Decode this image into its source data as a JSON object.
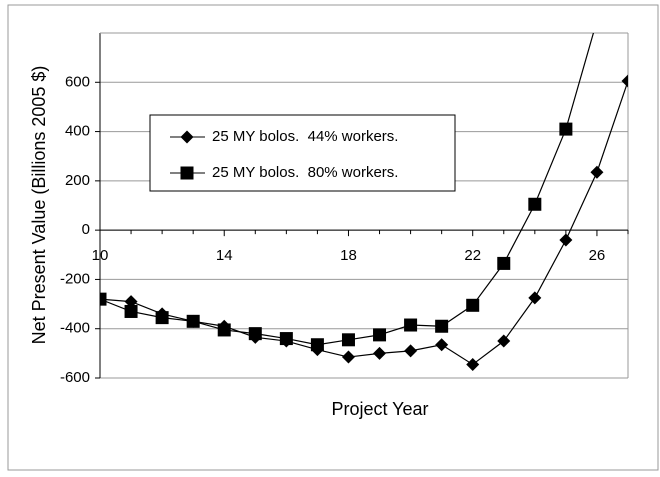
{
  "chart_data": {
    "type": "line",
    "x": [
      10,
      11,
      12,
      13,
      14,
      15,
      16,
      17,
      18,
      19,
      20,
      21,
      22,
      23,
      24,
      25,
      26,
      27
    ],
    "series": [
      {
        "name": "25 MY bolos.  44% workers.",
        "color": "#000000",
        "marker": "diamond",
        "values": [
          -280,
          -290,
          -340,
          -370,
          -390,
          -435,
          -450,
          -485,
          -515,
          -500,
          -490,
          -465,
          -545,
          -450,
          -275,
          -40,
          235,
          605
        ]
      },
      {
        "name": "25 MY bolos.  80% workers.",
        "color": "#000000",
        "marker": "square",
        "values": [
          -280,
          -330,
          -355,
          -370,
          -405,
          -420,
          -440,
          -465,
          -445,
          -425,
          -385,
          -390,
          -305,
          -135,
          105,
          410,
          850,
          null
        ]
      }
    ],
    "xlim": [
      10,
      27
    ],
    "xticks": [
      10,
      14,
      18,
      22,
      26
    ],
    "ylim": [
      -600,
      800
    ],
    "yticks": [
      -600,
      -400,
      -200,
      0,
      200,
      400,
      600
    ],
    "xlabel": "Project Year",
    "ylabel": "Net Present Value (Billions 2005 $)",
    "grid": true
  }
}
